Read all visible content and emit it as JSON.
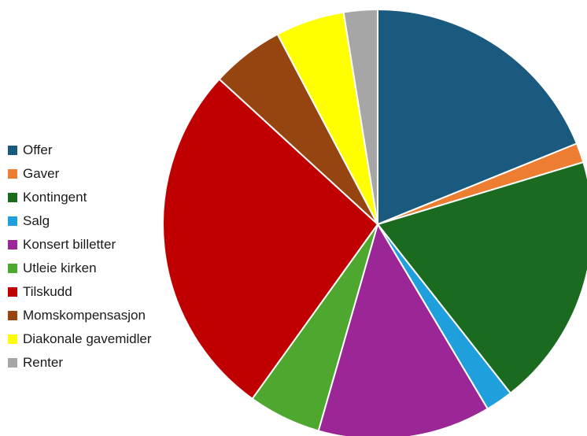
{
  "chart_data": {
    "type": "pie",
    "title": "",
    "start_angle_deg": 90,
    "direction": "clockwise",
    "legend_position": "left",
    "slices": [
      {
        "label": "Offer",
        "value": 19.3,
        "color": "#1a5a7e"
      },
      {
        "label": "Gaver",
        "value": 1.5,
        "color": "#ed7d31"
      },
      {
        "label": "Kontingent",
        "value": 19.5,
        "color": "#1a6b1f"
      },
      {
        "label": "Salg",
        "value": 2.1,
        "color": "#1fa0dc"
      },
      {
        "label": "Konsert billetter",
        "value": 13.3,
        "color": "#9b2796"
      },
      {
        "label": "Utleie kirken",
        "value": 5.6,
        "color": "#4ea72e"
      },
      {
        "label": "Tilskudd",
        "value": 27.5,
        "color": "#c00000"
      },
      {
        "label": "Momskompensasjon",
        "value": 5.6,
        "color": "#974510"
      },
      {
        "label": "Diakonale gavemidler",
        "value": 5.3,
        "color": "#ffff00"
      },
      {
        "label": "Renter",
        "value": 2.6,
        "color": "#a6a6a6"
      }
    ]
  }
}
